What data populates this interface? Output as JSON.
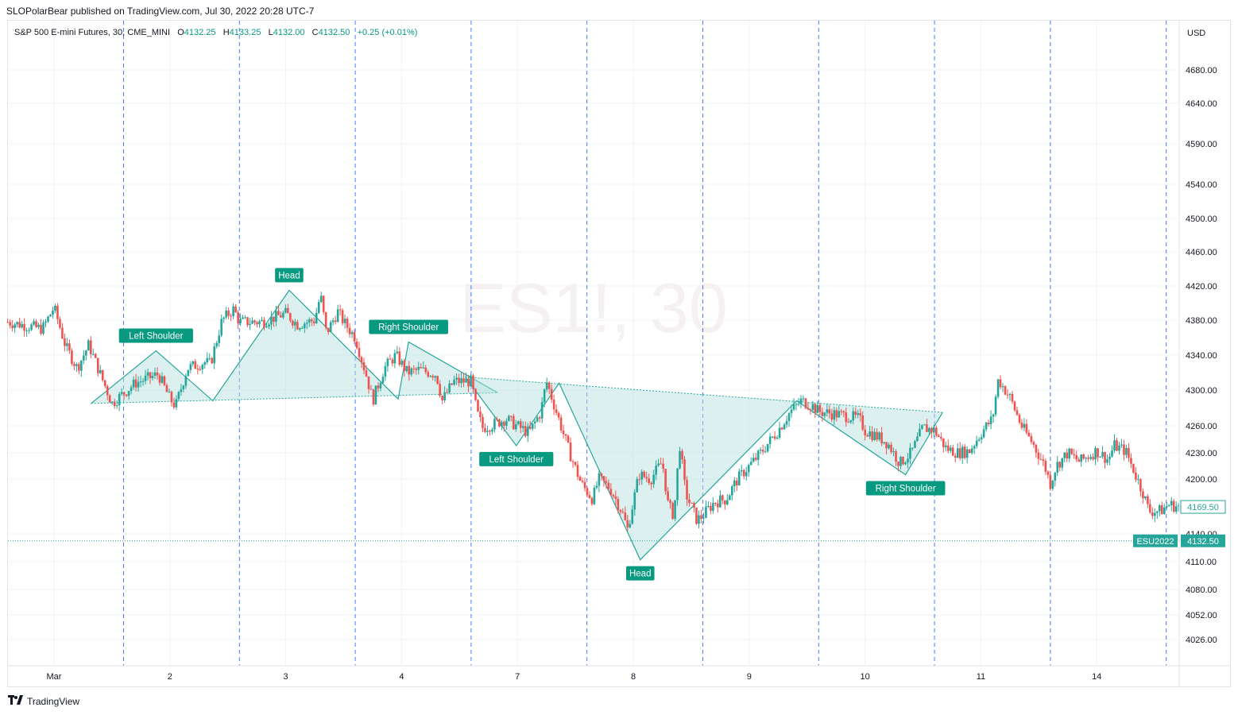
{
  "header": {
    "publisher_text": "SLOPolarBear published on TradingView.com, Jul 30, 2022 20:28 UTC-7"
  },
  "legend": {
    "symbol": "S&P 500 E-mini Futures, 30, CME_MINI",
    "open_label": "O",
    "open": "4132.25",
    "high_label": "H",
    "high": "4133.25",
    "low_label": "L",
    "low": "4132.00",
    "close_label": "C",
    "close": "4132.50",
    "change": "+0.25 (+0.01%)"
  },
  "watermark": "ES1!, 30",
  "footer": {
    "brand": "TradingView",
    "logo": "tradingview-logo-icon"
  },
  "colors": {
    "up": "#26a69a",
    "down": "#ef5350",
    "pattern_fill": "#b2dfdb",
    "pattern_line": "#26a69a",
    "label_bg": "#089981",
    "session_line": "#2962ff",
    "last_price": "#26a69a",
    "grid": "#f0f3fa"
  },
  "chart_data": {
    "type": "candlestick",
    "symbol": "ESU2022",
    "interval": "30",
    "currency": "USD",
    "ylim": [
      4000,
      4720
    ],
    "y_ticks": [
      4680.0,
      4640.0,
      4590.0,
      4540.0,
      4500.0,
      4460.0,
      4420.0,
      4380.0,
      4340.0,
      4300.0,
      4260.0,
      4230.0,
      4200.0,
      4140.0,
      4110.0,
      4080.0,
      4052.0,
      4026.0
    ],
    "x_labels": [
      {
        "label": "Mar",
        "day": 0
      },
      {
        "label": "2",
        "day": 1
      },
      {
        "label": "3",
        "day": 2
      },
      {
        "label": "4",
        "day": 3
      },
      {
        "label": "7",
        "day": 4
      },
      {
        "label": "8",
        "day": 5
      },
      {
        "label": "9",
        "day": 6
      },
      {
        "label": "10",
        "day": 7
      },
      {
        "label": "11",
        "day": 8
      },
      {
        "label": "14",
        "day": 9
      }
    ],
    "session_breaks": [
      0.6,
      1.6,
      2.6,
      3.6,
      4.6,
      5.6,
      6.6,
      7.6,
      8.6,
      9.6
    ],
    "price_path": [
      [
        -0.4,
        4378
      ],
      [
        -0.1,
        4370
      ],
      [
        0.0,
        4395
      ],
      [
        0.1,
        4350
      ],
      [
        0.2,
        4325
      ],
      [
        0.3,
        4352
      ],
      [
        0.4,
        4318
      ],
      [
        0.5,
        4285
      ],
      [
        0.7,
        4308
      ],
      [
        0.9,
        4318
      ],
      [
        1.0,
        4290
      ],
      [
        1.05,
        4282
      ],
      [
        1.15,
        4325
      ],
      [
        1.3,
        4332
      ],
      [
        1.35,
        4330
      ],
      [
        1.45,
        4380
      ],
      [
        1.55,
        4393
      ],
      [
        1.6,
        4378
      ],
      [
        1.8,
        4378
      ],
      [
        2.0,
        4388
      ],
      [
        2.1,
        4375
      ],
      [
        2.25,
        4380
      ],
      [
        2.3,
        4410
      ],
      [
        2.35,
        4365
      ],
      [
        2.45,
        4390
      ],
      [
        2.5,
        4378
      ],
      [
        2.6,
        4360
      ],
      [
        2.7,
        4315
      ],
      [
        2.75,
        4288
      ],
      [
        2.85,
        4325
      ],
      [
        2.95,
        4340
      ],
      [
        3.05,
        4320
      ],
      [
        3.15,
        4323
      ],
      [
        3.3,
        4318
      ],
      [
        3.35,
        4288
      ],
      [
        3.45,
        4310
      ],
      [
        3.6,
        4310
      ],
      [
        3.65,
        4275
      ],
      [
        3.7,
        4258
      ],
      [
        3.8,
        4262
      ],
      [
        3.9,
        4268
      ],
      [
        3.97,
        4262
      ],
      [
        4.1,
        4252
      ],
      [
        4.2,
        4275
      ],
      [
        4.25,
        4310
      ],
      [
        4.35,
        4270
      ],
      [
        4.45,
        4230
      ],
      [
        4.55,
        4195
      ],
      [
        4.65,
        4178
      ],
      [
        4.7,
        4200
      ],
      [
        4.8,
        4190
      ],
      [
        4.9,
        4165
      ],
      [
        4.95,
        4145
      ],
      [
        5.05,
        4205
      ],
      [
        5.15,
        4200
      ],
      [
        5.25,
        4220
      ],
      [
        5.3,
        4172
      ],
      [
        5.35,
        4160
      ],
      [
        5.4,
        4240
      ],
      [
        5.45,
        4185
      ],
      [
        5.55,
        4155
      ],
      [
        5.6,
        4160
      ],
      [
        5.7,
        4175
      ],
      [
        5.8,
        4178
      ],
      [
        5.9,
        4200
      ],
      [
        6.0,
        4215
      ],
      [
        6.1,
        4230
      ],
      [
        6.25,
        4255
      ],
      [
        6.35,
        4275
      ],
      [
        6.45,
        4288
      ],
      [
        6.55,
        4282
      ],
      [
        6.6,
        4276
      ],
      [
        6.8,
        4272
      ],
      [
        6.95,
        4268
      ],
      [
        7.0,
        4255
      ],
      [
        7.15,
        4245
      ],
      [
        7.2,
        4240
      ],
      [
        7.3,
        4218
      ],
      [
        7.4,
        4230
      ],
      [
        7.5,
        4258
      ],
      [
        7.6,
        4255
      ],
      [
        7.7,
        4235
      ],
      [
        7.8,
        4230
      ],
      [
        7.9,
        4232
      ],
      [
        8.0,
        4252
      ],
      [
        8.1,
        4268
      ],
      [
        8.15,
        4312
      ],
      [
        8.25,
        4292
      ],
      [
        8.35,
        4260
      ],
      [
        8.45,
        4240
      ],
      [
        8.55,
        4215
      ],
      [
        8.6,
        4195
      ],
      [
        8.65,
        4215
      ],
      [
        8.75,
        4230
      ],
      [
        8.85,
        4220
      ],
      [
        8.95,
        4228
      ],
      [
        9.0,
        4232
      ],
      [
        9.1,
        4222
      ],
      [
        9.15,
        4238
      ],
      [
        9.25,
        4232
      ],
      [
        9.35,
        4200
      ],
      [
        9.4,
        4185
      ],
      [
        9.45,
        4165
      ],
      [
        9.55,
        4165
      ],
      [
        9.62,
        4172
      ],
      [
        9.7,
        4170
      ]
    ],
    "last_price": 4132.5,
    "last_price_label": "4132.50",
    "last_price_symbol": "ESU2022",
    "current_price_label": "4169.50",
    "current_price": 4169.5,
    "patterns": [
      {
        "name": "Head and Shoulders (top)",
        "points": [
          [
            0.32,
            4285
          ],
          [
            0.88,
            4345
          ],
          [
            1.37,
            4288
          ],
          [
            2.03,
            4415
          ],
          [
            2.97,
            4290
          ],
          [
            3.06,
            4355
          ],
          [
            3.83,
            4297
          ]
        ],
        "neckline": [
          [
            0.32,
            4285
          ],
          [
            3.83,
            4297
          ]
        ],
        "labels": [
          {
            "text": "Left Shoulder",
            "day": 0.88,
            "price": 4345,
            "pos": "above"
          },
          {
            "text": "Head",
            "day": 2.03,
            "price": 4415,
            "pos": "above"
          },
          {
            "text": "Right Shoulder",
            "day": 3.06,
            "price": 4355,
            "pos": "above"
          }
        ]
      },
      {
        "name": "Inverse Head and Shoulders",
        "points": [
          [
            3.55,
            4315
          ],
          [
            3.99,
            4238
          ],
          [
            4.36,
            4308
          ],
          [
            5.06,
            4112
          ],
          [
            6.41,
            4288
          ],
          [
            7.35,
            4205
          ],
          [
            7.67,
            4275
          ]
        ],
        "neckline": [
          [
            3.55,
            4315
          ],
          [
            7.67,
            4275
          ]
        ],
        "labels": [
          {
            "text": "Left Shoulder",
            "day": 3.99,
            "price": 4238,
            "pos": "below"
          },
          {
            "text": "Head",
            "day": 5.06,
            "price": 4112,
            "pos": "below"
          },
          {
            "text": "Right Shoulder",
            "day": 7.35,
            "price": 4205,
            "pos": "below"
          }
        ]
      }
    ]
  }
}
